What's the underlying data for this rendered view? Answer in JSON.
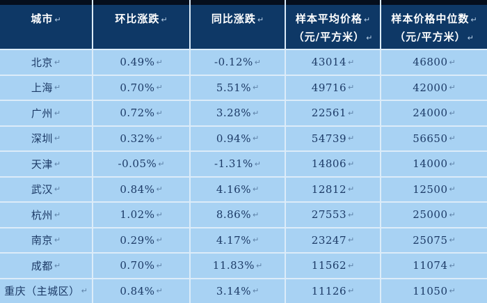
{
  "table": {
    "paragraph_mark": "↵",
    "columns": [
      {
        "label": "城市"
      },
      {
        "label": "环比涨跌"
      },
      {
        "label": "同比涨跌"
      },
      {
        "label": "样本平均价格",
        "label2": "（元/平方米）"
      },
      {
        "label": "样本价格中位数",
        "label2": "（元/平方米）"
      }
    ],
    "rows": [
      {
        "city": "北京",
        "mom": "0.49%",
        "yoy": "-0.12%",
        "avg": "43014",
        "median": "46800"
      },
      {
        "city": "上海",
        "mom": "0.70%",
        "yoy": "5.51%",
        "avg": "49716",
        "median": "42000"
      },
      {
        "city": "广州",
        "mom": "0.72%",
        "yoy": "3.28%",
        "avg": "22561",
        "median": "24000"
      },
      {
        "city": "深圳",
        "mom": "0.32%",
        "yoy": "0.94%",
        "avg": "54739",
        "median": "56650"
      },
      {
        "city": "天津",
        "mom": "-0.05%",
        "yoy": "-1.31%",
        "avg": "14806",
        "median": "14000"
      },
      {
        "city": "武汉",
        "mom": "0.84%",
        "yoy": "4.16%",
        "avg": "12812",
        "median": "12500"
      },
      {
        "city": "杭州",
        "mom": "1.02%",
        "yoy": "8.86%",
        "avg": "27553",
        "median": "25000"
      },
      {
        "city": "南京",
        "mom": "0.29%",
        "yoy": "4.17%",
        "avg": "23247",
        "median": "25075"
      },
      {
        "city": "成都",
        "mom": "0.70%",
        "yoy": "11.83%",
        "avg": "11562",
        "median": "11074"
      },
      {
        "city": "重庆（主城区）",
        "mom": "0.84%",
        "yoy": "3.14%",
        "avg": "11126",
        "median": "11050"
      }
    ]
  },
  "colors": {
    "header_bg": "#0e3866",
    "header_top_strip": "#050e1c",
    "row_bg": "#a8d2f3",
    "grid_line": "#dcecf9",
    "body_text": "#1c3a66",
    "header_text": "#ffffff",
    "paragraph_mark": "#5e82a8"
  }
}
